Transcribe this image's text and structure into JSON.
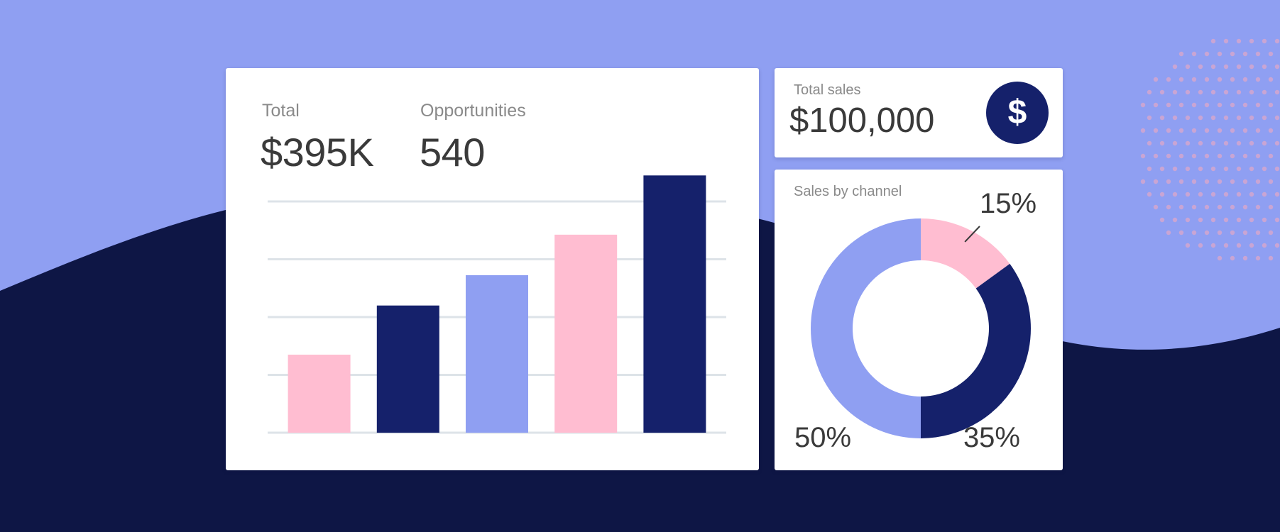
{
  "colors": {
    "background_dark": "#0e1645",
    "background_light": "#8f9ff2",
    "pink": "#ffbdd1",
    "navy": "#15216b",
    "periwinkle": "#8f9ff2",
    "card": "#ffffff",
    "dots": "#d4a6cf"
  },
  "summary": {
    "total_label": "Total",
    "total_value": "$395K",
    "opportunities_label": "Opportunities",
    "opportunities_value": "540"
  },
  "total_sales": {
    "label": "Total sales",
    "value": "$100,000",
    "icon": "dollar-icon",
    "icon_glyph": "$"
  },
  "sales_by_channel": {
    "label": "Sales by channel"
  },
  "chart_data": [
    {
      "type": "bar",
      "categories": [
        "",
        "",
        "",
        "",
        ""
      ],
      "values": [
        27,
        44,
        54.5,
        68.5,
        89
      ],
      "colors": [
        "#ffbdd1",
        "#15216b",
        "#8f9ff2",
        "#ffbdd1",
        "#15216b"
      ],
      "ylim": [
        0,
        80
      ],
      "gridlines": [
        20,
        40,
        60,
        80
      ],
      "grid": true
    },
    {
      "type": "pie",
      "donut": true,
      "slices": [
        {
          "value": 15,
          "label": "15%",
          "color": "#ffbdd1"
        },
        {
          "value": 35,
          "label": "35%",
          "color": "#15216b"
        },
        {
          "value": 50,
          "label": "50%",
          "color": "#8f9ff2"
        }
      ]
    }
  ]
}
